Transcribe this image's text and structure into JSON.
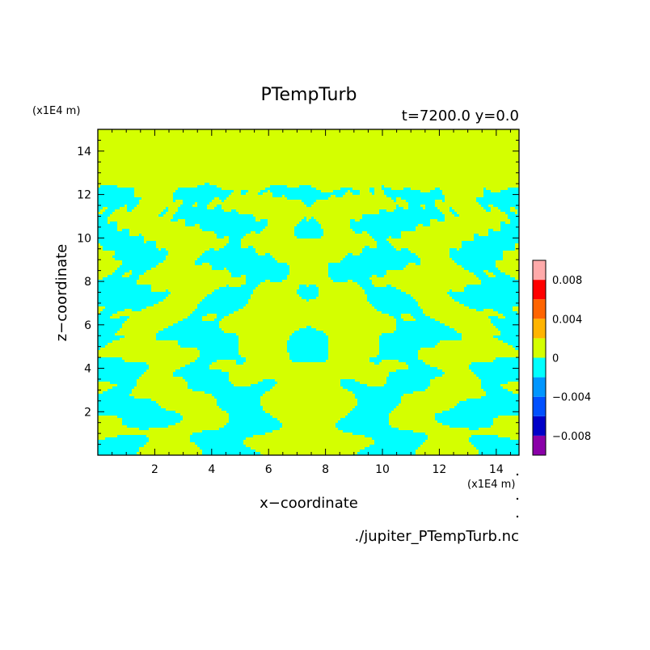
{
  "chart_data": {
    "type": "heatmap",
    "title": "PTempTurb",
    "subtitle": "t=7200.0 y=0.0",
    "xlabel": "x−coordinate",
    "ylabel": "z−coordinate",
    "x_scale_label": "(x1E4 m)",
    "y_scale_label": "(x1E4 m)",
    "xlim": [
      0.0,
      14.8
    ],
    "ylim": [
      0.0,
      15.0
    ],
    "x_ticks": [
      2,
      4,
      6,
      8,
      10,
      12,
      14
    ],
    "y_ticks": [
      2,
      4,
      6,
      8,
      10,
      12,
      14
    ],
    "grid": false,
    "field_top_z": 12.3,
    "field_description_values": {
      "above_layer_value": 0.0,
      "dominant_negative_value": -0.002,
      "dominant_positive_value": 0.001
    },
    "colorbar": {
      "levels": [
        -0.01,
        -0.008,
        -0.006,
        -0.004,
        -0.002,
        0.0,
        0.002,
        0.004,
        0.006,
        0.008,
        0.01
      ],
      "colors": [
        "#8a00a8",
        "#0000c8",
        "#0050ff",
        "#0096ff",
        "#00ffff",
        "#d4ff00",
        "#ffb400",
        "#ff6400",
        "#ff0000",
        "#ffaaaa"
      ],
      "tick_labels": [
        {
          "value": -0.008,
          "label": "−0.008"
        },
        {
          "value": -0.004,
          "label": "−0.004"
        },
        {
          "value": 0.0,
          "label": "0"
        },
        {
          "value": 0.004,
          "label": "0.004"
        },
        {
          "value": 0.008,
          "label": "0.008"
        }
      ]
    },
    "colors": {
      "positive_fill": "#d4ff00",
      "negative_fill": "#00ffff"
    },
    "footer_filename": "./jupiter_PTempTurb.nc"
  }
}
